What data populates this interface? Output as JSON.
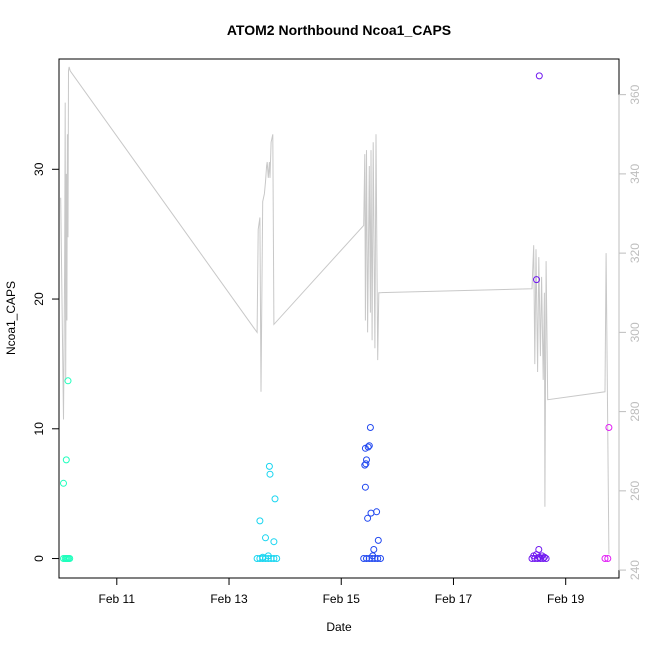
{
  "chart_data": {
    "type": "scatter",
    "title": "ATOM2 Northbound Ncoa1_CAPS",
    "xlabel": "Date",
    "ylabel": "Ncoa1_CAPS",
    "x_ticks": [
      "Feb 11",
      "Feb 13",
      "Feb 15",
      "Feb 17",
      "Feb 19"
    ],
    "x_tick_days": [
      11,
      13,
      15,
      17,
      19
    ],
    "xlim": [
      9.97,
      19.95
    ],
    "ylim": [
      -1.5,
      38.5
    ],
    "y_ticks": [
      0,
      10,
      20,
      30
    ],
    "y2_ticks": [
      240,
      260,
      280,
      300,
      320,
      340,
      360
    ],
    "y2lim": [
      238,
      369
    ],
    "grid": false,
    "series": [
      {
        "kind": "points",
        "color": "#1DFFBC",
        "points": [
          [
            10.05,
            0
          ],
          [
            10.08,
            0
          ],
          [
            10.1,
            0
          ],
          [
            10.12,
            0
          ],
          [
            10.14,
            0
          ],
          [
            10.16,
            0
          ],
          [
            10.05,
            5.8
          ],
          [
            10.1,
            7.6
          ],
          [
            10.13,
            13.7
          ]
        ]
      },
      {
        "kind": "points",
        "color": "#17D5F0",
        "points": [
          [
            13.5,
            0
          ],
          [
            13.55,
            0
          ],
          [
            13.6,
            0
          ],
          [
            13.65,
            0
          ],
          [
            13.7,
            0
          ],
          [
            13.75,
            0
          ],
          [
            13.8,
            0
          ],
          [
            13.85,
            0
          ],
          [
            13.55,
            2.9
          ],
          [
            13.65,
            1.6
          ],
          [
            13.72,
            7.1
          ],
          [
            13.73,
            6.5
          ],
          [
            13.8,
            1.3
          ],
          [
            13.82,
            4.6
          ],
          [
            13.7,
            0.2
          ],
          [
            13.6,
            0.1
          ]
        ]
      },
      {
        "kind": "points",
        "color": "#2148F0",
        "points": [
          [
            15.4,
            0
          ],
          [
            15.45,
            0
          ],
          [
            15.5,
            0
          ],
          [
            15.55,
            0
          ],
          [
            15.6,
            0
          ],
          [
            15.65,
            0
          ],
          [
            15.7,
            0
          ],
          [
            15.43,
            8.5
          ],
          [
            15.45,
            7.6
          ],
          [
            15.42,
            7.2
          ],
          [
            15.44,
            7.3
          ],
          [
            15.48,
            8.6
          ],
          [
            15.5,
            8.7
          ],
          [
            15.52,
            10.1
          ],
          [
            15.43,
            5.5
          ],
          [
            15.47,
            3.1
          ],
          [
            15.53,
            3.5
          ],
          [
            15.63,
            3.6
          ],
          [
            15.66,
            1.4
          ],
          [
            15.58,
            0.7
          ],
          [
            15.56,
            0.2
          ]
        ]
      },
      {
        "kind": "points",
        "color": "#6F17F0",
        "points": [
          [
            18.4,
            0
          ],
          [
            18.45,
            0
          ],
          [
            18.5,
            0
          ],
          [
            18.55,
            0
          ],
          [
            18.6,
            0
          ],
          [
            18.65,
            0
          ],
          [
            18.43,
            0.2
          ],
          [
            18.48,
            0.3
          ],
          [
            18.53,
            0.1
          ],
          [
            18.58,
            0.2
          ],
          [
            18.62,
            0.1
          ],
          [
            18.52,
            0.7
          ],
          [
            18.48,
            21.5
          ],
          [
            18.53,
            37.2
          ]
        ]
      },
      {
        "kind": "points",
        "color": "#E11FF5",
        "points": [
          [
            19.7,
            0
          ],
          [
            19.75,
            0
          ],
          [
            19.77,
            10.1
          ]
        ]
      },
      {
        "kind": "line",
        "axis": "right",
        "color": "#c8c8c8",
        "points": [
          [
            10.0,
            334
          ],
          [
            10.03,
            300
          ],
          [
            10.05,
            278
          ],
          [
            10.07,
            315
          ],
          [
            10.08,
            358
          ],
          [
            10.09,
            288
          ],
          [
            10.1,
            340
          ],
          [
            10.11,
            303
          ],
          [
            10.12,
            350
          ],
          [
            10.13,
            324
          ],
          [
            10.14,
            366
          ],
          [
            10.15,
            367
          ],
          [
            10.17,
            366
          ],
          [
            13.5,
            300
          ],
          [
            13.52,
            326
          ],
          [
            13.55,
            329
          ],
          [
            13.57,
            285
          ],
          [
            13.6,
            333
          ],
          [
            13.63,
            335
          ],
          [
            13.65,
            338
          ],
          [
            13.67,
            342
          ],
          [
            13.68,
            343
          ],
          [
            13.7,
            339
          ],
          [
            13.72,
            343
          ],
          [
            13.73,
            339
          ],
          [
            13.75,
            348
          ],
          [
            13.78,
            350
          ],
          [
            13.8,
            302
          ],
          [
            15.4,
            327
          ],
          [
            15.42,
            345
          ],
          [
            15.43,
            303
          ],
          [
            15.45,
            346
          ],
          [
            15.47,
            300
          ],
          [
            15.5,
            342
          ],
          [
            15.52,
            305
          ],
          [
            15.53,
            346
          ],
          [
            15.55,
            298
          ],
          [
            15.57,
            348
          ],
          [
            15.6,
            296
          ],
          [
            15.62,
            350
          ],
          [
            15.65,
            293
          ],
          [
            15.67,
            310
          ],
          [
            15.7,
            310
          ],
          [
            18.4,
            311
          ],
          [
            18.43,
            322
          ],
          [
            18.45,
            292
          ],
          [
            18.47,
            321
          ],
          [
            18.5,
            290
          ],
          [
            18.52,
            319
          ],
          [
            18.55,
            294
          ],
          [
            18.57,
            314
          ],
          [
            18.6,
            288
          ],
          [
            18.62,
            310
          ],
          [
            18.63,
            256
          ],
          [
            18.65,
            318
          ],
          [
            18.68,
            283
          ],
          [
            19.7,
            285
          ],
          [
            19.72,
            320
          ],
          [
            19.77,
            244
          ]
        ]
      }
    ]
  }
}
